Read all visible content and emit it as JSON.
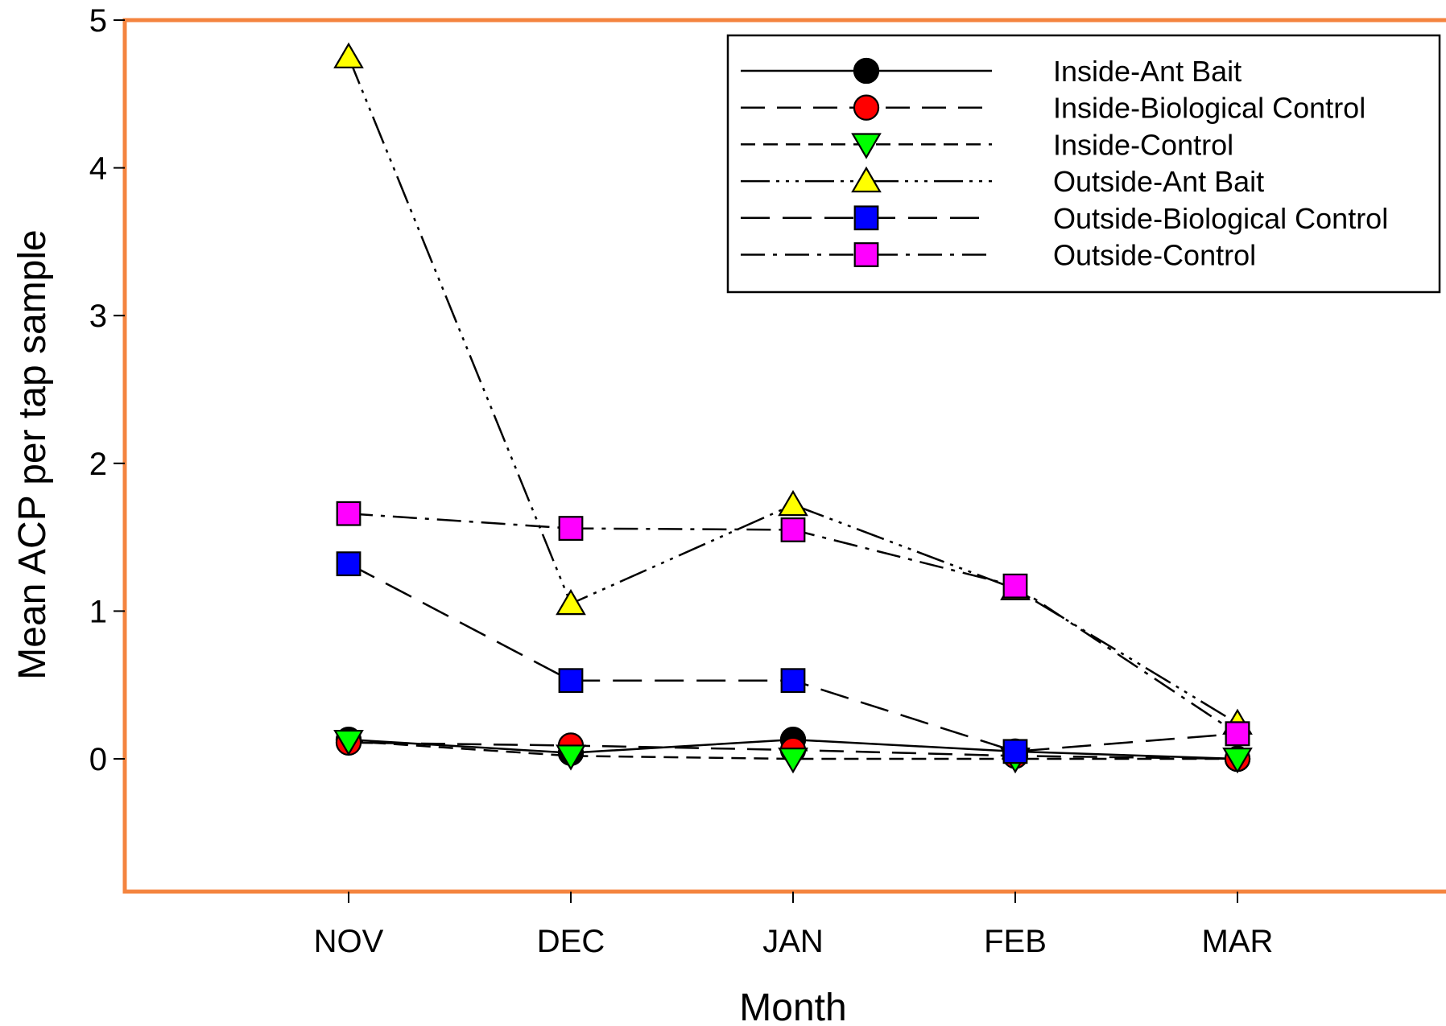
{
  "chart_data": {
    "type": "line",
    "title": "",
    "xlabel": "Month",
    "ylabel": "Mean ACP per tap sample",
    "categories": [
      "NOV",
      "DEC",
      "JAN",
      "FEB",
      "MAR"
    ],
    "ylim": [
      -0.9,
      5
    ],
    "yticks": [
      0,
      1,
      2,
      3,
      4,
      5
    ],
    "grid": false,
    "frame_color": "#F4843F",
    "legend_position": "top-right",
    "series": [
      {
        "name": "Inside-Ant Bait",
        "values": [
          0.13,
          0.04,
          0.13,
          0.05,
          0.0
        ],
        "marker": "circle",
        "fill": "#000000",
        "dash": ""
      },
      {
        "name": "Inside-Biological Control",
        "values": [
          0.11,
          0.09,
          0.06,
          0.02,
          0.0
        ],
        "marker": "circle",
        "fill": "#FF0000",
        "dash": "30,15"
      },
      {
        "name": "Inside-Control",
        "values": [
          0.12,
          0.02,
          0.0,
          0.0,
          0.0
        ],
        "marker": "triangle-down",
        "fill": "#00FF00",
        "dash": "18,10"
      },
      {
        "name": "Outside-Ant Bait",
        "values": [
          4.75,
          1.05,
          1.72,
          1.15,
          0.24
        ],
        "marker": "triangle-up",
        "fill": "#FFFF00",
        "dash": "36,8,4,8,4,8,4,8"
      },
      {
        "name": "Outside-Biological Control",
        "values": [
          1.32,
          0.53,
          0.53,
          0.05,
          0.17
        ],
        "marker": "square",
        "fill": "#0000FF",
        "dash": "36,16"
      },
      {
        "name": "Outside-Control",
        "values": [
          1.66,
          1.56,
          1.55,
          1.17,
          0.17
        ],
        "marker": "square",
        "fill": "#FF00FF",
        "dash": "30,10,5,10"
      }
    ]
  }
}
